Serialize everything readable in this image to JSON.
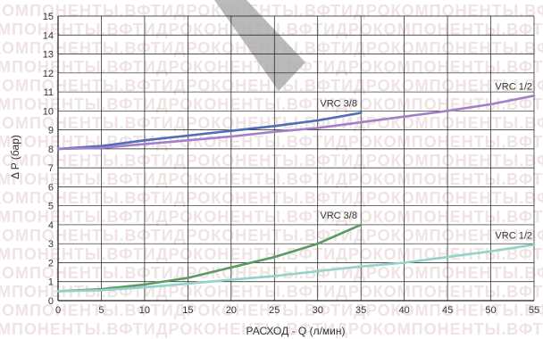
{
  "chart_data": {
    "type": "line",
    "xlabel": "РАСХОД - Q (л/мин)",
    "ylabel": "Δ P (бар)",
    "xlim": [
      0,
      55
    ],
    "ylim": [
      0,
      15
    ],
    "x_ticks": [
      0,
      5,
      10,
      15,
      20,
      25,
      30,
      35,
      40,
      45,
      50,
      55
    ],
    "y_ticks": [
      0,
      1,
      2,
      3,
      4,
      5,
      6,
      7,
      8,
      9,
      10,
      11,
      12,
      13,
      14,
      15
    ],
    "grid": true,
    "watermark": "КОМПОНЕНТЫ.ВФТИДРОКОНЕНТЫ.ВФТИДРО",
    "colors": {
      "blue": "#4f6cb4",
      "purple": "#a27fc9",
      "green": "#5b9a63",
      "teal": "#93d3cc",
      "grid": "#1a1a1a",
      "band": "#a9a9a9"
    },
    "series": [
      {
        "name": "VRC 3/8",
        "color": "#4f6cb4",
        "x": [
          0,
          5,
          10,
          15,
          20,
          25,
          30,
          35
        ],
        "y": [
          8.0,
          8.15,
          8.45,
          8.7,
          8.95,
          9.2,
          9.5,
          9.9
        ]
      },
      {
        "name": "VRC 1/2",
        "color": "#a27fc9",
        "x": [
          0,
          5,
          10,
          15,
          20,
          25,
          30,
          35,
          40,
          45,
          50,
          55
        ],
        "y": [
          8.0,
          8.05,
          8.25,
          8.45,
          8.65,
          8.9,
          9.1,
          9.4,
          9.7,
          10.0,
          10.35,
          10.8
        ]
      },
      {
        "name": "VRC 3/8",
        "color": "#5b9a63",
        "x": [
          0,
          5,
          10,
          15,
          20,
          25,
          30,
          35
        ],
        "y": [
          0.5,
          0.6,
          0.85,
          1.2,
          1.75,
          2.3,
          3.0,
          4.0
        ]
      },
      {
        "name": "VRC 1/2",
        "color": "#93d3cc",
        "x": [
          0,
          5,
          10,
          15,
          20,
          25,
          30,
          35,
          40,
          45,
          50,
          55
        ],
        "y": [
          0.5,
          0.55,
          0.7,
          0.9,
          1.1,
          1.3,
          1.55,
          1.8,
          2.0,
          2.3,
          2.6,
          2.95
        ]
      }
    ]
  }
}
